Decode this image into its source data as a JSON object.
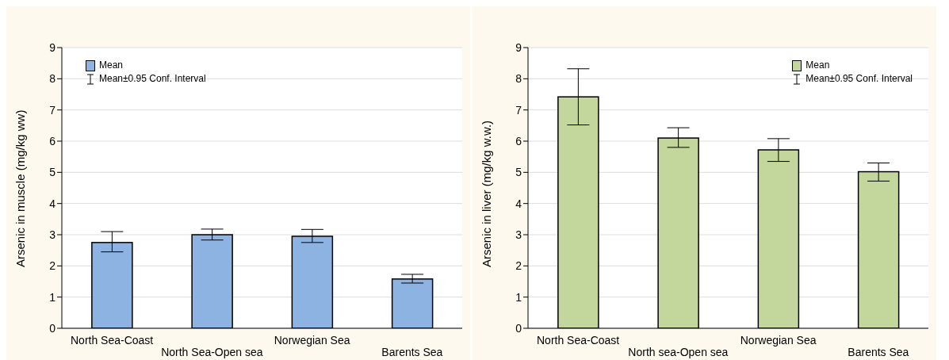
{
  "chart_data": [
    {
      "type": "bar",
      "categories": [
        "North Sea-Coast",
        "North Sea-Open sea",
        "Norwegian Sea",
        "Barents Sea"
      ],
      "ylabel": "Arsenic in muscle (mg/kg ww)",
      "ylim": [
        0,
        9
      ],
      "yticks": [
        0,
        1,
        2,
        3,
        4,
        5,
        6,
        7,
        8,
        9
      ],
      "grid": "y",
      "legend": "top left",
      "annotations": [
        "Mean±0.95 Conf. Interval"
      ],
      "series": [
        {
          "name": "Mean",
          "color": "#8db3e2",
          "values": [
            2.75,
            3.0,
            2.95,
            1.58
          ],
          "errors": [
            [
              2.45,
              3.1
            ],
            [
              2.83,
              3.18
            ],
            [
              2.75,
              3.17
            ],
            [
              1.45,
              1.73
            ]
          ]
        }
      ]
    },
    {
      "type": "bar",
      "categories": [
        "North Sea-Coast",
        "North sea-Open sea",
        "Norwegian Sea",
        "Barents Sea"
      ],
      "ylabel": "Arsenic in liver (mg/kg w.w.)",
      "ylim": [
        0,
        9
      ],
      "yticks": [
        0,
        1,
        2,
        3,
        4,
        5,
        6,
        7,
        8,
        9
      ],
      "grid": "y",
      "legend": "top right",
      "annotations": [
        "Mean±0.95 Conf. Interval"
      ],
      "series": [
        {
          "name": "Mean",
          "color": "#c3d69b",
          "values": [
            7.42,
            6.1,
            5.72,
            5.02
          ],
          "errors": [
            [
              6.52,
              8.32
            ],
            [
              5.8,
              6.43
            ],
            [
              5.35,
              6.08
            ],
            [
              4.72,
              5.3
            ]
          ]
        }
      ]
    }
  ]
}
